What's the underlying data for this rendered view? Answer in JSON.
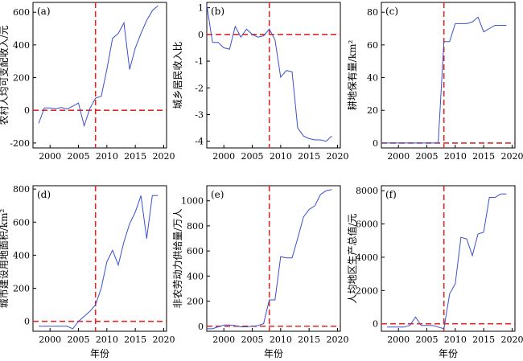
{
  "chart_data": [
    {
      "type": "line",
      "panel_label": "(a)",
      "xlabel": "",
      "ylabel": "农村人均可支配收入/元",
      "xlim": [
        1997,
        2020.5
      ],
      "ylim": [
        -230,
        660
      ],
      "xticks": [
        2000,
        2005,
        2010,
        2015,
        2020
      ],
      "yticks": [
        -200,
        0,
        200,
        400,
        600
      ],
      "ref_v": 2008,
      "ref_h": 0,
      "series": [
        {
          "x": [
            1998,
            1999,
            2000,
            2001,
            2002,
            2003,
            2004,
            2005,
            2006,
            2007,
            2008,
            2009,
            2010,
            2011,
            2012,
            2013,
            2014,
            2015,
            2016,
            2017,
            2018,
            2019
          ],
          "values": [
            -80,
            15,
            15,
            10,
            18,
            8,
            25,
            45,
            -95,
            10,
            75,
            85,
            250,
            440,
            470,
            535,
            250,
            380,
            470,
            550,
            610,
            640
          ]
        }
      ]
    },
    {
      "type": "line",
      "panel_label": "(b)",
      "xlabel": "",
      "ylabel": "城乡居民收入比",
      "xlim": [
        1997,
        2020.5
      ],
      "ylim": [
        -4.25,
        1.2
      ],
      "xticks": [
        2000,
        2005,
        2010,
        2015,
        2020
      ],
      "yticks": [
        -4,
        -3,
        -2,
        -1,
        0,
        1
      ],
      "ref_v": 2008,
      "ref_h": 0,
      "series": [
        {
          "x": [
            1997,
            1998,
            1999,
            2000,
            2001,
            2002,
            2003,
            2004,
            2005,
            2006,
            2007,
            2008,
            2009,
            2010,
            2011,
            2012,
            2013,
            2014,
            2015,
            2016,
            2017,
            2018,
            2019
          ],
          "values": [
            1.1,
            -0.3,
            -0.3,
            -0.5,
            -0.55,
            0.3,
            -0.1,
            0.2,
            0.0,
            -0.1,
            -0.05,
            0.2,
            -0.2,
            -1.6,
            -1.35,
            -1.4,
            -3.5,
            -3.8,
            -3.9,
            -3.95,
            -3.95,
            -4.0,
            -3.8
          ]
        }
      ]
    },
    {
      "type": "line",
      "panel_label": "(c)",
      "xlabel": "",
      "ylabel": "耕地保有量/km²",
      "xlim": [
        1997,
        2020.5
      ],
      "ylim": [
        -3,
        86
      ],
      "xticks": [
        2000,
        2005,
        2010,
        2015,
        2020
      ],
      "yticks": [
        0,
        20,
        40,
        60,
        80
      ],
      "ref_v": 2008,
      "ref_h": 0,
      "series": [
        {
          "x": [
            1997,
            1998,
            1999,
            2000,
            2001,
            2002,
            2003,
            2004,
            2005,
            2006,
            2007,
            2008,
            2009,
            2010,
            2011,
            2012,
            2013,
            2014,
            2015,
            2016,
            2017,
            2018,
            2019
          ],
          "values": [
            0,
            0,
            0,
            0,
            0,
            0,
            0,
            0,
            0,
            0,
            0,
            62,
            62,
            73,
            73,
            73,
            74,
            77,
            68,
            70,
            72,
            72,
            72
          ]
        }
      ]
    },
    {
      "type": "line",
      "panel_label": "(d)",
      "xlabel": "年份",
      "ylabel": "城市建设用地面积/km²",
      "xlim": [
        1997,
        2020.5
      ],
      "ylim": [
        -60,
        820
      ],
      "xticks": [
        2000,
        2005,
        2010,
        2015,
        2020
      ],
      "yticks": [
        0,
        200,
        400,
        600,
        800
      ],
      "ref_v": 2008,
      "ref_h": 0,
      "series": [
        {
          "x": [
            1998,
            1999,
            2000,
            2001,
            2002,
            2003,
            2004,
            2005,
            2006,
            2007,
            2008,
            2009,
            2010,
            2011,
            2012,
            2013,
            2014,
            2015,
            2016,
            2017,
            2018,
            2019
          ],
          "values": [
            -30,
            -30,
            -30,
            -30,
            -30,
            -30,
            -45,
            0,
            30,
            60,
            100,
            200,
            360,
            430,
            340,
            480,
            590,
            660,
            760,
            500,
            760,
            760
          ]
        }
      ]
    },
    {
      "type": "line",
      "panel_label": "(e)",
      "xlabel": "年份",
      "ylabel": "非农劳动力供给量/万人",
      "xlim": [
        1997,
        2020.5
      ],
      "ylim": [
        -40,
        1120
      ],
      "xticks": [
        2000,
        2005,
        2010,
        2015,
        2020
      ],
      "yticks": [
        0,
        200,
        400,
        600,
        800,
        1000
      ],
      "ref_v": 2008,
      "ref_h": 0,
      "series": [
        {
          "x": [
            1997,
            1998,
            1999,
            2000,
            2001,
            2002,
            2003,
            2004,
            2005,
            2006,
            2007,
            2008,
            2009,
            2010,
            2011,
            2012,
            2013,
            2014,
            2015,
            2016,
            2017,
            2018,
            2019
          ],
          "values": [
            -20,
            -20,
            -5,
            10,
            10,
            5,
            -5,
            -5,
            0,
            5,
            20,
            210,
            210,
            555,
            545,
            545,
            700,
            870,
            930,
            960,
            1050,
            1080,
            1090
          ]
        }
      ]
    },
    {
      "type": "line",
      "panel_label": "(f)",
      "xlabel": "年份",
      "ylabel": "人均地区生产总值/元",
      "xlim": [
        1997,
        2020.5
      ],
      "ylim": [
        -450,
        8300
      ],
      "xticks": [
        2000,
        2005,
        2010,
        2015,
        2020
      ],
      "yticks": [
        0,
        2000,
        4000,
        6000,
        8000
      ],
      "ref_v": 2008,
      "ref_h": 0,
      "series": [
        {
          "x": [
            1998,
            1999,
            2000,
            2001,
            2002,
            2003,
            2004,
            2005,
            2006,
            2007,
            2008,
            2009,
            2010,
            2011,
            2012,
            2013,
            2014,
            2015,
            2016,
            2017,
            2018,
            2019
          ],
          "values": [
            -200,
            -200,
            -200,
            -200,
            -100,
            400,
            -100,
            -100,
            -100,
            -200,
            -300,
            1800,
            2400,
            5200,
            5100,
            4100,
            5400,
            5500,
            7600,
            7600,
            7800,
            7800
          ]
        }
      ]
    }
  ]
}
